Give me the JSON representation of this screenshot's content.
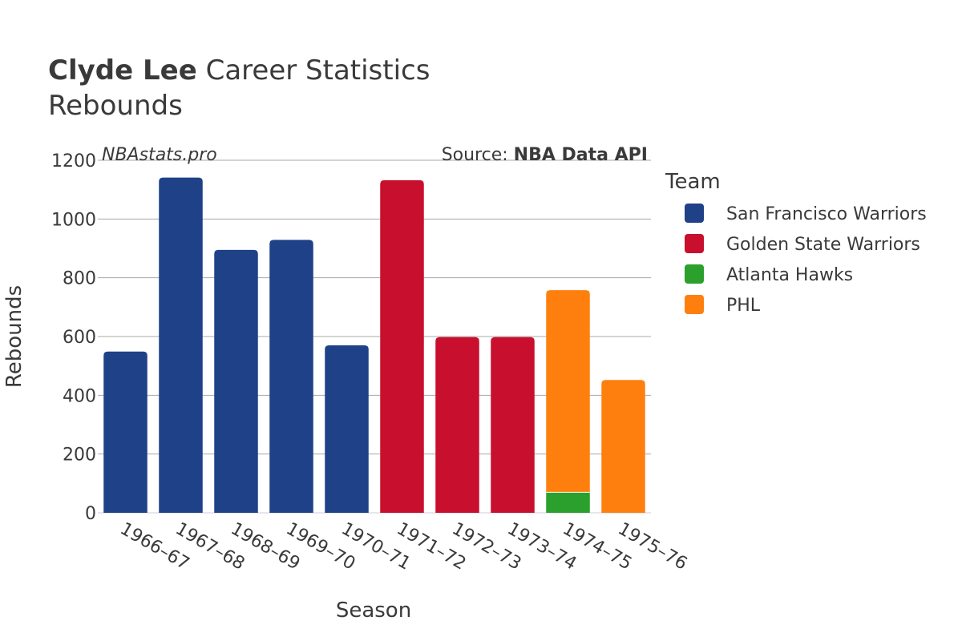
{
  "header": {
    "player": "Clyde Lee",
    "title_rest": " Career Statistics",
    "subtitle": "Rebounds"
  },
  "watermark": "NBAstats.pro",
  "source": {
    "prefix": "Source: ",
    "name": "NBA Data API"
  },
  "legend": {
    "title": "Team"
  },
  "chart_data": {
    "type": "bar",
    "stacked": true,
    "title": "Clyde Lee Career Statistics",
    "subtitle": "Rebounds",
    "xlabel": "Season",
    "ylabel": "Rebounds",
    "ylim": [
      0,
      1200
    ],
    "yticks": [
      0,
      200,
      400,
      600,
      800,
      1000,
      1200
    ],
    "grid": true,
    "legend_position": "right",
    "categories": [
      "1966–67",
      "1967–68",
      "1968–69",
      "1969–70",
      "1970–71",
      "1971–72",
      "1972–73",
      "1973–74",
      "1974–75",
      "1975–76"
    ],
    "series": [
      {
        "name": "San Francisco Warriors",
        "color": "#1f4187",
        "values": [
          549,
          1141,
          895,
          929,
          570,
          0,
          0,
          0,
          0,
          0
        ]
      },
      {
        "name": "Golden State Warriors",
        "color": "#c8102e",
        "values": [
          0,
          0,
          0,
          0,
          0,
          1132,
          598,
          598,
          0,
          0
        ]
      },
      {
        "name": "Atlanta Hawks",
        "color": "#2ca02c",
        "values": [
          0,
          0,
          0,
          0,
          0,
          0,
          0,
          0,
          70,
          0
        ]
      },
      {
        "name": "PHL",
        "color": "#ff7f0e",
        "values": [
          0,
          0,
          0,
          0,
          0,
          0,
          0,
          0,
          688,
          452
        ]
      }
    ]
  }
}
